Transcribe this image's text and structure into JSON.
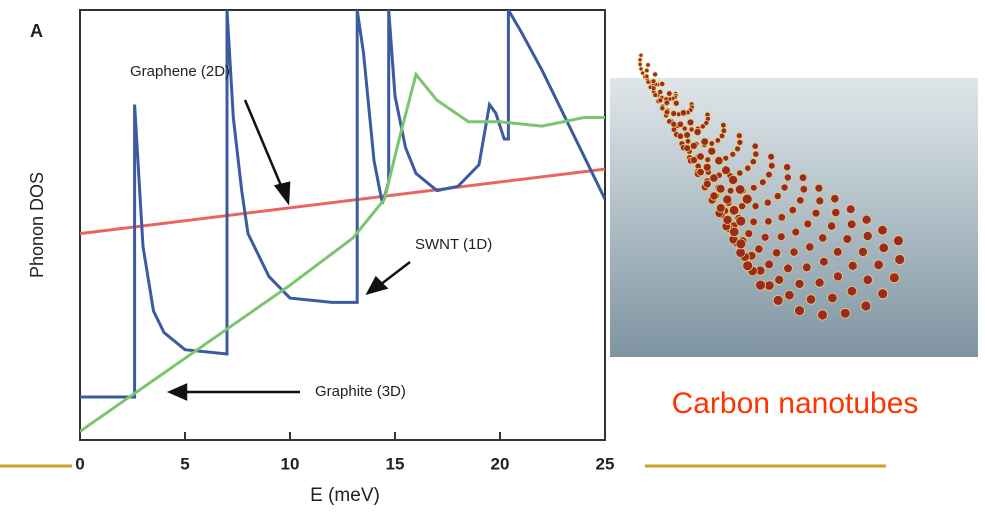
{
  "chart_data": {
    "type": "line",
    "panel_label": "A",
    "x_label": "E (meV)",
    "y_label": "Phonon DOS",
    "xlim": [
      0,
      25
    ],
    "xticks": [
      0,
      5,
      10,
      15,
      20,
      25
    ],
    "ylim": [
      0,
      100
    ],
    "series": [
      {
        "name": "Graphene (2D)",
        "color": "#e8665e",
        "x": [
          0,
          25
        ],
        "values": [
          48,
          63
        ]
      },
      {
        "name": "SWNT (1D)",
        "color": "#3b5aa0",
        "x": [
          0,
          2.6,
          2.6,
          3,
          3.5,
          4,
          5,
          7,
          7,
          7.3,
          7.7,
          8,
          9,
          10,
          12,
          13.2,
          13.2,
          13.5,
          14,
          14.4,
          14.7,
          14.7,
          15,
          15.5,
          16,
          17,
          18,
          19,
          19.5,
          19.8,
          20.2,
          20.4,
          20.4,
          21,
          22,
          23,
          24,
          25
        ],
        "values": [
          10,
          10,
          78,
          45,
          30,
          25,
          21,
          20,
          100,
          75,
          58,
          48,
          38,
          33,
          32,
          32,
          100,
          90,
          65,
          55,
          60,
          100,
          80,
          68,
          62,
          58,
          59,
          64,
          78,
          76,
          70,
          70,
          100,
          95,
          86,
          76,
          66,
          56
        ]
      },
      {
        "name": "Graphite (3D)",
        "color": "#7cc56f",
        "x": [
          0,
          5,
          10,
          13,
          14.5,
          15.2,
          16,
          17,
          18.5,
          20,
          22,
          24,
          25
        ],
        "values": [
          2,
          19,
          36,
          47,
          56,
          70,
          85,
          79,
          74,
          74,
          73,
          75,
          75
        ]
      }
    ]
  },
  "caption": "Carbon nanotubes"
}
